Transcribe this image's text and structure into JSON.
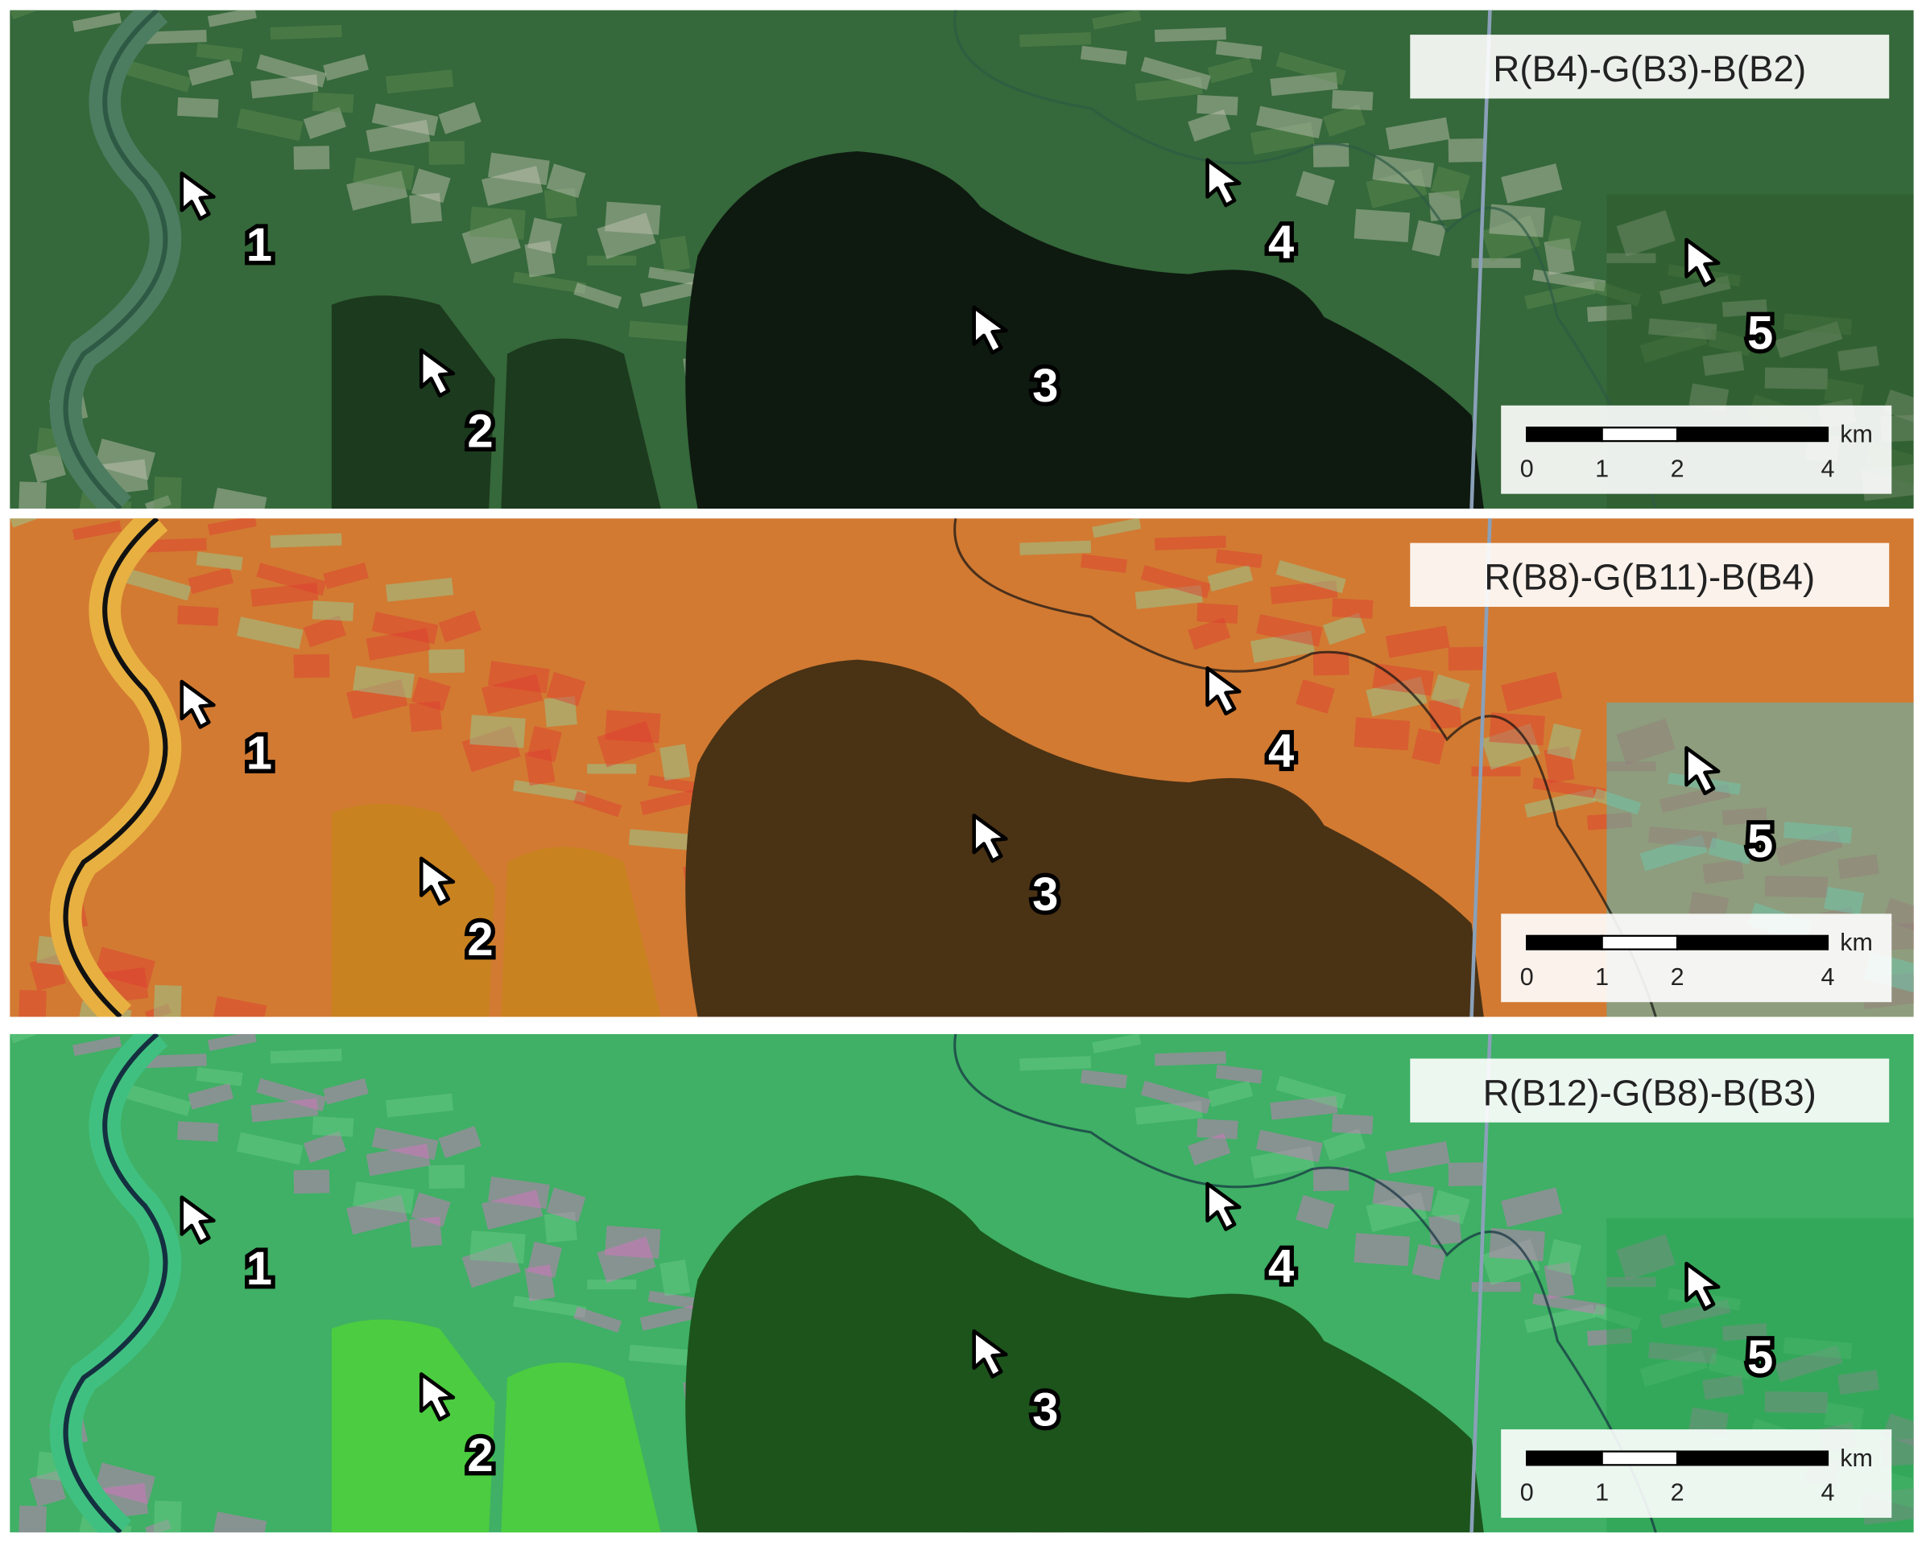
{
  "panels": [
    {
      "label": "R(B4)-G(B3)-B(B2)"
    },
    {
      "label": "R(B8)-G(B11)-B(B4)"
    },
    {
      "label": "R(B12)-G(B8)-B(B3)"
    }
  ],
  "markers": [
    "1",
    "2",
    "3",
    "4",
    "5"
  ],
  "scale_bar": {
    "ticks": [
      0,
      1,
      2,
      4
    ],
    "unit": "km"
  }
}
